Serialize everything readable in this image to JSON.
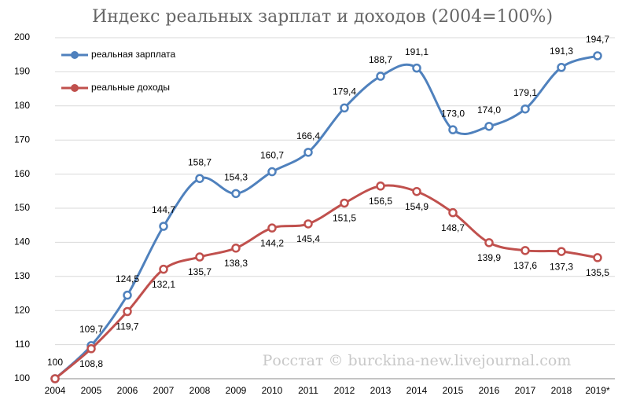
{
  "chart_data": {
    "type": "line",
    "title": "Индекс реальных зарплат и доходов (2004=100%)",
    "annotation": "Росстат © burckina-new.livejournal.com",
    "categories": [
      "2004",
      "2005",
      "2006",
      "2007",
      "2008",
      "2009",
      "2010",
      "2011",
      "2012",
      "2013",
      "2014",
      "2015",
      "2016",
      "2017",
      "2018",
      "2019*"
    ],
    "series": [
      {
        "name": "реальная зарплата",
        "color": "#4f81bd",
        "values": [
          100,
          109.7,
          124.5,
          144.7,
          158.7,
          154.3,
          160.7,
          166.4,
          179.4,
          188.7,
          191.1,
          173.0,
          174.0,
          179.1,
          191.3,
          194.7
        ],
        "value_labels": [
          "100",
          "109,7",
          "124,5",
          "144,7",
          "158,7",
          "154,3",
          "160,7",
          "166,4",
          "179,4",
          "188,7",
          "191,1",
          "173,0",
          "174,0",
          "179,1",
          "191,3",
          "194,7"
        ]
      },
      {
        "name": "реальные доходы",
        "color": "#c0504d",
        "values": [
          100,
          108.8,
          119.7,
          132.1,
          135.7,
          138.3,
          144.2,
          145.4,
          151.5,
          156.5,
          154.9,
          148.7,
          139.9,
          137.6,
          137.3,
          135.5
        ],
        "value_labels": [
          null,
          "108,8",
          "119,7",
          "132,1",
          "135,7",
          "138,3",
          "144,2",
          "145,4",
          "151,5",
          "156,5",
          "154,9",
          "148,7",
          "139,9",
          "137,6",
          "137,3",
          "135,5"
        ]
      }
    ],
    "ylim": [
      100,
      200
    ],
    "yticks": [
      100,
      110,
      120,
      130,
      140,
      150,
      160,
      170,
      180,
      190,
      200
    ],
    "grid": true,
    "smooth": true
  }
}
